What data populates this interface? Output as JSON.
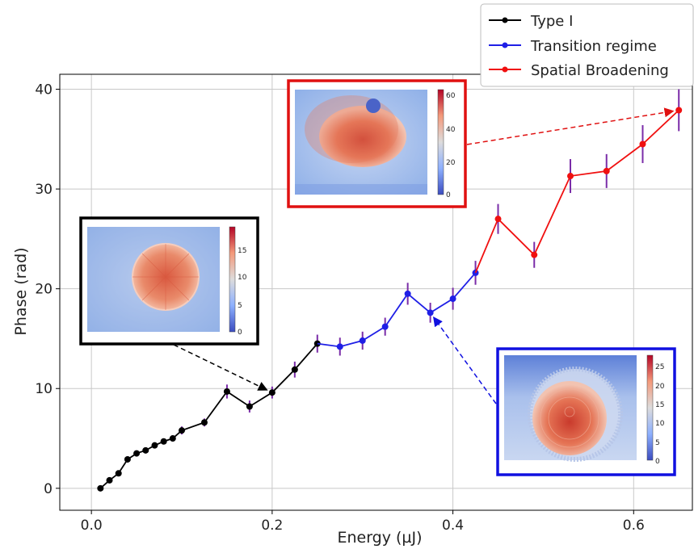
{
  "chart_data": {
    "type": "line",
    "title": "",
    "xlabel": "Energy (µJ)",
    "ylabel": "Phase (rad)",
    "xlim": [
      -0.035,
      0.665
    ],
    "ylim": [
      -2.2,
      41.5
    ],
    "xticks": [
      0.0,
      0.2,
      0.4,
      0.6
    ],
    "xtick_labels": [
      "0.0",
      "0.2",
      "0.4",
      "0.6"
    ],
    "yticks": [
      0,
      10,
      20,
      30,
      40
    ],
    "ytick_labels": [
      "0",
      "10",
      "20",
      "30",
      "40"
    ],
    "grid": true,
    "legend_position": "top-right",
    "series": [
      {
        "name": "Type I",
        "color": "#000000",
        "errorbar_color": "#7a2ca8",
        "points": [
          {
            "x": 0.01,
            "y": 0.0,
            "err": 0.0
          },
          {
            "x": 0.02,
            "y": 0.8,
            "err": 0.0
          },
          {
            "x": 0.03,
            "y": 1.5,
            "err": 0.3
          },
          {
            "x": 0.04,
            "y": 2.9,
            "err": 0.3
          },
          {
            "x": 0.05,
            "y": 3.5,
            "err": 0.3
          },
          {
            "x": 0.06,
            "y": 3.8,
            "err": 0.3
          },
          {
            "x": 0.07,
            "y": 4.3,
            "err": 0.3
          },
          {
            "x": 0.08,
            "y": 4.7,
            "err": 0.3
          },
          {
            "x": 0.09,
            "y": 5.0,
            "err": 0.3
          },
          {
            "x": 0.1,
            "y": 5.8,
            "err": 0.4
          },
          {
            "x": 0.125,
            "y": 6.6,
            "err": 0.4
          },
          {
            "x": 0.15,
            "y": 9.7,
            "err": 0.7
          },
          {
            "x": 0.175,
            "y": 8.2,
            "err": 0.6
          },
          {
            "x": 0.2,
            "y": 9.6,
            "err": 0.6
          },
          {
            "x": 0.225,
            "y": 11.9,
            "err": 0.8
          },
          {
            "x": 0.25,
            "y": 14.5,
            "err": 0.9
          }
        ]
      },
      {
        "name": "Transition regime",
        "color": "#1f1fe6",
        "errorbar_color": "#7a2ca8",
        "points": [
          {
            "x": 0.25,
            "y": 14.5,
            "err": 0.9
          },
          {
            "x": 0.275,
            "y": 14.2,
            "err": 0.9
          },
          {
            "x": 0.3,
            "y": 14.8,
            "err": 0.9
          },
          {
            "x": 0.325,
            "y": 16.2,
            "err": 0.9
          },
          {
            "x": 0.35,
            "y": 19.5,
            "err": 1.1
          },
          {
            "x": 0.375,
            "y": 17.6,
            "err": 1.0
          },
          {
            "x": 0.4,
            "y": 19.0,
            "err": 1.1
          },
          {
            "x": 0.425,
            "y": 21.6,
            "err": 1.2
          }
        ]
      },
      {
        "name": "Spatial Broadening",
        "color": "#f01010",
        "errorbar_color": "#7a2ca8",
        "points": [
          {
            "x": 0.425,
            "y": 21.6,
            "err": 1.2
          },
          {
            "x": 0.45,
            "y": 27.0,
            "err": 1.5
          },
          {
            "x": 0.49,
            "y": 23.4,
            "err": 1.3
          },
          {
            "x": 0.53,
            "y": 31.3,
            "err": 1.7
          },
          {
            "x": 0.57,
            "y": 31.8,
            "err": 1.7
          },
          {
            "x": 0.61,
            "y": 34.5,
            "err": 1.9
          },
          {
            "x": 0.65,
            "y": 37.9,
            "err": 2.1
          }
        ]
      }
    ],
    "insets": [
      {
        "name": "type-i-inset",
        "frame_color": "#000000",
        "colorbar_ticks": [
          "0",
          "5",
          "10",
          "15"
        ],
        "points_to": {
          "x": 0.2,
          "y": 9.6
        }
      },
      {
        "name": "spatial-broadening-inset",
        "frame_color": "#e01010",
        "colorbar_ticks": [
          "0",
          "20",
          "40",
          "60"
        ],
        "points_to": {
          "x": 0.65,
          "y": 37.9
        }
      },
      {
        "name": "transition-regime-inset",
        "frame_color": "#1010e0",
        "colorbar_ticks": [
          "0",
          "5",
          "10",
          "15",
          "20",
          "25"
        ],
        "points_to": {
          "x": 0.375,
          "y": 17.6
        }
      }
    ]
  }
}
